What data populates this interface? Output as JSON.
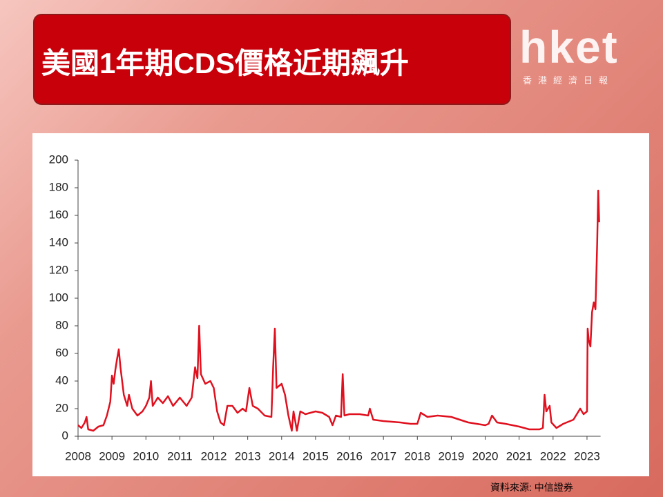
{
  "header": {
    "title": "美國1年期CDS價格近期飆升",
    "logo": "hket",
    "logo_subtitle": "香港經濟日報"
  },
  "chart_data": {
    "type": "line",
    "color": "#e0101e",
    "xlim": [
      2008,
      2023.4
    ],
    "xticks": [
      2008,
      2009,
      2010,
      2011,
      2012,
      2013,
      2014,
      2015,
      2016,
      2017,
      2018,
      2019,
      2020,
      2021,
      2022,
      2023
    ],
    "ylim": [
      0,
      200
    ],
    "yticks": [
      0,
      20,
      40,
      60,
      80,
      100,
      120,
      140,
      160,
      180,
      200
    ],
    "x": [
      2008.0,
      2008.1,
      2008.2,
      2008.25,
      2008.3,
      2008.45,
      2008.6,
      2008.75,
      2008.85,
      2008.95,
      2009.0,
      2009.05,
      2009.1,
      2009.15,
      2009.2,
      2009.25,
      2009.35,
      2009.45,
      2009.5,
      2009.6,
      2009.75,
      2009.9,
      2010.0,
      2010.1,
      2010.15,
      2010.2,
      2010.35,
      2010.5,
      2010.65,
      2010.8,
      2011.0,
      2011.2,
      2011.35,
      2011.45,
      2011.52,
      2011.57,
      2011.62,
      2011.75,
      2011.9,
      2012.0,
      2012.1,
      2012.2,
      2012.3,
      2012.4,
      2012.55,
      2012.7,
      2012.85,
      2012.95,
      2013.05,
      2013.15,
      2013.3,
      2013.5,
      2013.7,
      2013.75,
      2013.8,
      2013.85,
      2014.0,
      2014.1,
      2014.2,
      2014.3,
      2014.35,
      2014.45,
      2014.55,
      2014.7,
      2015.0,
      2015.2,
      2015.4,
      2015.5,
      2015.6,
      2015.75,
      2015.8,
      2015.85,
      2016.0,
      2016.3,
      2016.55,
      2016.6,
      2016.7,
      2017.0,
      2017.5,
      2017.8,
      2018.0,
      2018.1,
      2018.3,
      2018.6,
      2019.0,
      2019.5,
      2020.0,
      2020.1,
      2020.2,
      2020.35,
      2020.6,
      2020.8,
      2021.0,
      2021.3,
      2021.6,
      2021.7,
      2021.75,
      2021.8,
      2021.9,
      2021.95,
      2022.1,
      2022.3,
      2022.6,
      2022.8,
      2022.9,
      2023.0,
      2023.02,
      2023.05,
      2023.1,
      2023.15,
      2023.2,
      2023.25,
      2023.3,
      2023.33,
      2023.36
    ],
    "values": [
      8,
      6,
      10,
      14,
      5,
      4,
      7,
      8,
      15,
      25,
      44,
      38,
      48,
      56,
      63,
      50,
      30,
      22,
      30,
      20,
      15,
      18,
      22,
      28,
      40,
      22,
      28,
      24,
      29,
      22,
      28,
      22,
      28,
      50,
      42,
      80,
      45,
      38,
      40,
      35,
      18,
      10,
      8,
      22,
      22,
      17,
      20,
      18,
      35,
      22,
      20,
      15,
      14,
      50,
      78,
      35,
      38,
      30,
      15,
      4,
      18,
      4,
      18,
      16,
      18,
      17,
      14,
      8,
      15,
      14,
      45,
      15,
      16,
      16,
      15,
      20,
      12,
      11,
      10,
      9,
      9,
      17,
      14,
      15,
      14,
      10,
      8,
      9,
      15,
      10,
      9,
      8,
      7,
      5,
      5,
      6,
      30,
      18,
      22,
      10,
      6,
      9,
      12,
      20,
      16,
      18,
      78,
      70,
      65,
      90,
      97,
      92,
      140,
      178,
      155
    ]
  },
  "source": "資料來源: 中信證券"
}
